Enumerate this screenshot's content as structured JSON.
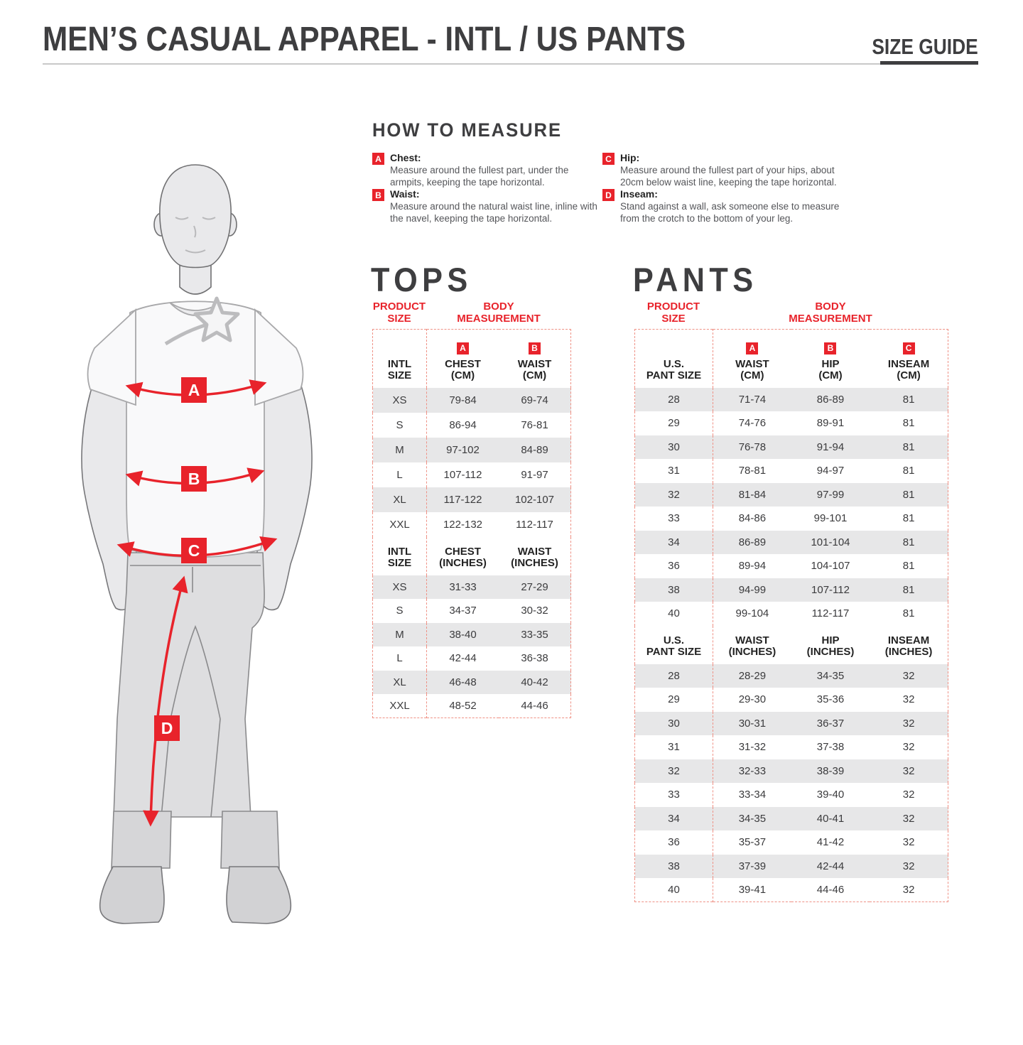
{
  "colors": {
    "accent_red": "#e8232b",
    "table_border_red": "#ef9185",
    "title_grey": "#3e3e40",
    "row_shade_grey": "#e7e7e8"
  },
  "header": {
    "title": "MEN’S CASUAL APPAREL - INTL / US PANTS",
    "badge": "SIZE GUIDE"
  },
  "how_to_measure": {
    "title": "HOW TO MEASURE",
    "items": [
      {
        "letter": "A",
        "label": "Chest:",
        "text": "Measure around the fullest part, under the armpits, keeping the tape horizontal."
      },
      {
        "letter": "B",
        "label": "Waist:",
        "text": "Measure around the natural waist line, inline with the navel, keeping the tape horizontal."
      },
      {
        "letter": "C",
        "label": "Hip:",
        "text": "Measure around the fullest part of your hips, about 20cm below waist line, keeping the tape horizontal."
      },
      {
        "letter": "D",
        "label": "Inseam:",
        "text": "Stand against a wall, ask someone else to measure from the crotch to the bottom of your leg."
      }
    ]
  },
  "figure": {
    "markers": [
      "A",
      "B",
      "C",
      "D"
    ]
  },
  "tops": {
    "title": "TOPS",
    "product_size_label": "PRODUCT\nSIZE",
    "body_measurement_label": "BODY\nMEASUREMENT",
    "cm": {
      "size_header": "INTL\nSIZE",
      "col_letters": [
        "A",
        "B"
      ],
      "col1_header": "CHEST\n(CM)",
      "col2_header": "WAIST\n(CM)",
      "rows": [
        {
          "size": "XS",
          "chest": "79-84",
          "waist": "69-74"
        },
        {
          "size": "S",
          "chest": "86-94",
          "waist": "76-81"
        },
        {
          "size": "M",
          "chest": "97-102",
          "waist": "84-89"
        },
        {
          "size": "L",
          "chest": "107-112",
          "waist": "91-97"
        },
        {
          "size": "XL",
          "chest": "117-122",
          "waist": "102-107"
        },
        {
          "size": "XXL",
          "chest": "122-132",
          "waist": "112-117"
        }
      ]
    },
    "inches": {
      "size_header": "INTL\nSIZE",
      "col1_header": "CHEST\n(INCHES)",
      "col2_header": "WAIST\n(INCHES)",
      "rows": [
        {
          "size": "XS",
          "chest": "31-33",
          "waist": "27-29"
        },
        {
          "size": "S",
          "chest": "34-37",
          "waist": "30-32"
        },
        {
          "size": "M",
          "chest": "38-40",
          "waist": "33-35"
        },
        {
          "size": "L",
          "chest": "42-44",
          "waist": "36-38"
        },
        {
          "size": "XL",
          "chest": "46-48",
          "waist": "40-42"
        },
        {
          "size": "XXL",
          "chest": "48-52",
          "waist": "44-46"
        }
      ]
    }
  },
  "pants": {
    "title": "PANTS",
    "product_size_label": "PRODUCT\nSIZE",
    "body_measurement_label": "BODY\nMEASUREMENT",
    "cm": {
      "size_header": "U.S.\nPANT SIZE",
      "col_letters": [
        "A",
        "B",
        "C"
      ],
      "col1_header": "WAIST\n(CM)",
      "col2_header": "HIP\n(CM)",
      "col3_header": "INSEAM\n(CM)",
      "rows": [
        {
          "size": "28",
          "waist": "71-74",
          "hip": "86-89",
          "inseam": "81"
        },
        {
          "size": "29",
          "waist": "74-76",
          "hip": "89-91",
          "inseam": "81"
        },
        {
          "size": "30",
          "waist": "76-78",
          "hip": "91-94",
          "inseam": "81"
        },
        {
          "size": "31",
          "waist": "78-81",
          "hip": "94-97",
          "inseam": "81"
        },
        {
          "size": "32",
          "waist": "81-84",
          "hip": "97-99",
          "inseam": "81"
        },
        {
          "size": "33",
          "waist": "84-86",
          "hip": "99-101",
          "inseam": "81"
        },
        {
          "size": "34",
          "waist": "86-89",
          "hip": "101-104",
          "inseam": "81"
        },
        {
          "size": "36",
          "waist": "89-94",
          "hip": "104-107",
          "inseam": "81"
        },
        {
          "size": "38",
          "waist": "94-99",
          "hip": "107-112",
          "inseam": "81"
        },
        {
          "size": "40",
          "waist": "99-104",
          "hip": "112-117",
          "inseam": "81"
        }
      ]
    },
    "inches": {
      "size_header": "U.S.\nPANT SIZE",
      "col1_header": "WAIST\n(INCHES)",
      "col2_header": "HIP\n(INCHES)",
      "col3_header": "INSEAM\n(INCHES)",
      "rows": [
        {
          "size": "28",
          "waist": "28-29",
          "hip": "34-35",
          "inseam": "32"
        },
        {
          "size": "29",
          "waist": "29-30",
          "hip": "35-36",
          "inseam": "32"
        },
        {
          "size": "30",
          "waist": "30-31",
          "hip": "36-37",
          "inseam": "32"
        },
        {
          "size": "31",
          "waist": "31-32",
          "hip": "37-38",
          "inseam": "32"
        },
        {
          "size": "32",
          "waist": "32-33",
          "hip": "38-39",
          "inseam": "32"
        },
        {
          "size": "33",
          "waist": "33-34",
          "hip": "39-40",
          "inseam": "32"
        },
        {
          "size": "34",
          "waist": "34-35",
          "hip": "40-41",
          "inseam": "32"
        },
        {
          "size": "36",
          "waist": "35-37",
          "hip": "41-42",
          "inseam": "32"
        },
        {
          "size": "38",
          "waist": "37-39",
          "hip": "42-44",
          "inseam": "32"
        },
        {
          "size": "40",
          "waist": "39-41",
          "hip": "44-46",
          "inseam": "32"
        }
      ]
    }
  }
}
